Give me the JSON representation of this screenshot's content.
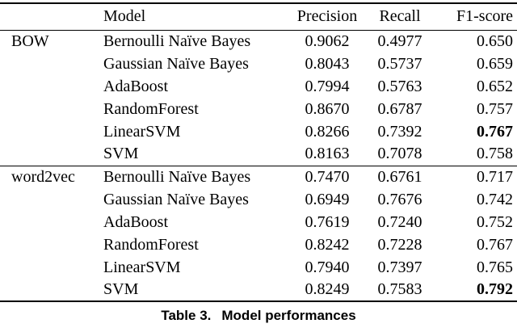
{
  "table": {
    "headers": {
      "group": "",
      "model": "Model",
      "precision": "Precision",
      "recall": "Recall",
      "f1": "F1-score"
    },
    "groups": [
      {
        "name": "BOW",
        "rows": [
          {
            "model": "Bernoulli Naïve Bayes",
            "precision": "0.9062",
            "recall": "0.4977",
            "f1": "0.650",
            "f1_bold": false
          },
          {
            "model": "Gaussian Naïve Bayes",
            "precision": "0.8043",
            "recall": "0.5737",
            "f1": "0.659",
            "f1_bold": false
          },
          {
            "model": "AdaBoost",
            "precision": "0.7994",
            "recall": "0.5763",
            "f1": "0.652",
            "f1_bold": false
          },
          {
            "model": "RandomForest",
            "precision": "0.8670",
            "recall": "0.6787",
            "f1": "0.757",
            "f1_bold": false
          },
          {
            "model": "LinearSVM",
            "precision": "0.8266",
            "recall": "0.7392",
            "f1": "0.767",
            "f1_bold": true
          },
          {
            "model": "SVM",
            "precision": "0.8163",
            "recall": "0.7078",
            "f1": "0.758",
            "f1_bold": false
          }
        ]
      },
      {
        "name": "word2vec",
        "rows": [
          {
            "model": "Bernoulli Naïve Bayes",
            "precision": "0.7470",
            "recall": "0.6761",
            "f1": "0.717",
            "f1_bold": false
          },
          {
            "model": "Gaussian Naïve Bayes",
            "precision": "0.6949",
            "recall": "0.7676",
            "f1": "0.742",
            "f1_bold": false
          },
          {
            "model": "AdaBoost",
            "precision": "0.7619",
            "recall": "0.7240",
            "f1": "0.752",
            "f1_bold": false
          },
          {
            "model": "RandomForest",
            "precision": "0.8242",
            "recall": "0.7228",
            "f1": "0.767",
            "f1_bold": false
          },
          {
            "model": "LinearSVM",
            "precision": "0.7940",
            "recall": "0.7397",
            "f1": "0.765",
            "f1_bold": false
          },
          {
            "model": "SVM",
            "precision": "0.8249",
            "recall": "0.7583",
            "f1": "0.792",
            "f1_bold": true
          }
        ]
      }
    ]
  },
  "caption": {
    "label": "Table 3.",
    "text": "Model performances"
  },
  "colors": {
    "text": "#000000",
    "background": "#ffffff",
    "rule": "#000000"
  }
}
